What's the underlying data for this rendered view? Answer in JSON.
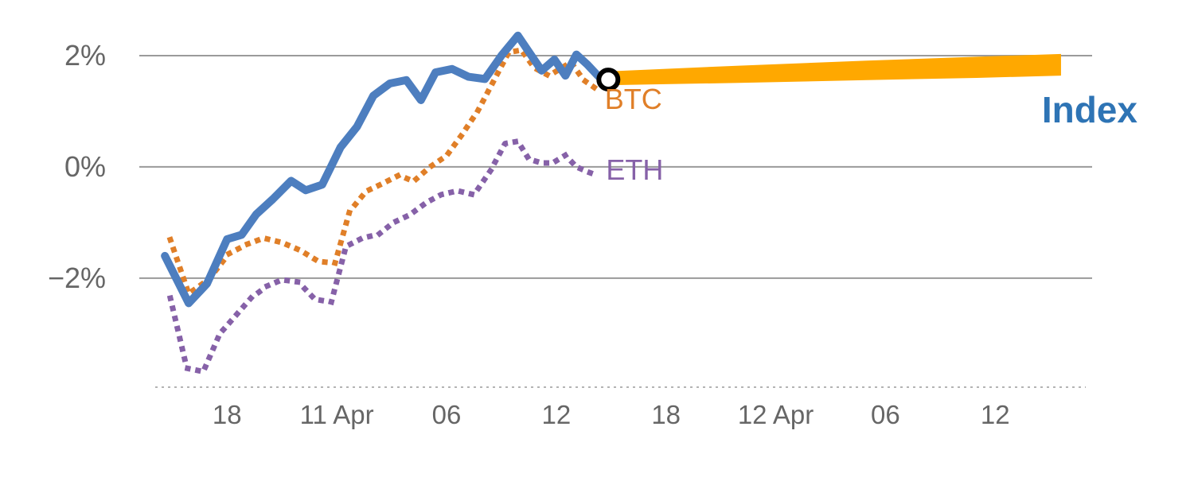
{
  "chart_data": {
    "type": "line",
    "title": "",
    "xlabel": "",
    "ylabel": "",
    "x_axis_note": "datetime axis, 6-hour ticks spanning 10 Apr to 12 Apr, hours since 10 Apr 00:00",
    "xlim": [
      13.2,
      65.3
    ],
    "ylim": [
      -3.96,
      2.7
    ],
    "grid": "horizontal",
    "legend_position": "inline-labels",
    "style": {
      "grid_color": "#9a9a9a",
      "axis_color": "#b3b3b3",
      "tick_color": "#666666"
    },
    "y_ticks": [
      {
        "v": 2,
        "label": "2%"
      },
      {
        "v": 0,
        "label": "0%"
      },
      {
        "v": -2,
        "label": "−2%"
      }
    ],
    "x_ticks": [
      {
        "t": 18,
        "label": "18"
      },
      {
        "t": 24,
        "label": "11 Apr"
      },
      {
        "t": 30,
        "label": "06"
      },
      {
        "t": 36,
        "label": "12"
      },
      {
        "t": 42,
        "label": "18"
      },
      {
        "t": 48,
        "label": "12 Apr"
      },
      {
        "t": 54,
        "label": "06"
      },
      {
        "t": 60,
        "label": "12"
      }
    ],
    "series": [
      {
        "id": "eth",
        "name": "ETH",
        "color": "#8661a8",
        "dash": "dotted",
        "width": 7,
        "points": [
          [
            14.9,
            -2.36
          ],
          [
            15.8,
            -3.62
          ],
          [
            16.7,
            -3.68
          ],
          [
            17.6,
            -3.0
          ],
          [
            18.4,
            -2.7
          ],
          [
            19.3,
            -2.36
          ],
          [
            20.2,
            -2.14
          ],
          [
            21.0,
            -2.03
          ],
          [
            21.9,
            -2.07
          ],
          [
            22.8,
            -2.38
          ],
          [
            23.7,
            -2.43
          ],
          [
            24.5,
            -1.43
          ],
          [
            25.4,
            -1.28
          ],
          [
            26.3,
            -1.21
          ],
          [
            27.1,
            -1.0
          ],
          [
            28.0,
            -0.86
          ],
          [
            28.9,
            -0.64
          ],
          [
            29.7,
            -0.5
          ],
          [
            30.6,
            -0.43
          ],
          [
            31.5,
            -0.5
          ],
          [
            32.4,
            -0.07
          ],
          [
            33.2,
            0.42
          ],
          [
            33.9,
            0.46
          ],
          [
            34.5,
            0.14
          ],
          [
            35.2,
            0.07
          ],
          [
            35.8,
            0.07
          ],
          [
            36.5,
            0.21
          ],
          [
            37.1,
            0.0
          ],
          [
            37.8,
            -0.1
          ],
          [
            38.3,
            -0.16
          ]
        ]
      },
      {
        "id": "btc",
        "name": "BTC",
        "color": "#e07f28",
        "dash": "dotted",
        "width": 7,
        "points": [
          [
            14.9,
            -1.31
          ],
          [
            15.9,
            -2.28
          ],
          [
            17.0,
            -2.02
          ],
          [
            18.1,
            -1.56
          ],
          [
            19.1,
            -1.39
          ],
          [
            20.0,
            -1.28
          ],
          [
            21.0,
            -1.36
          ],
          [
            22.0,
            -1.5
          ],
          [
            23.0,
            -1.7
          ],
          [
            23.9,
            -1.73
          ],
          [
            24.7,
            -0.8
          ],
          [
            25.6,
            -0.44
          ],
          [
            26.5,
            -0.3
          ],
          [
            27.4,
            -0.15
          ],
          [
            28.2,
            -0.26
          ],
          [
            29.1,
            0.0
          ],
          [
            30.0,
            0.2
          ],
          [
            30.8,
            0.56
          ],
          [
            31.7,
            1.0
          ],
          [
            32.6,
            1.56
          ],
          [
            33.4,
            2.06
          ],
          [
            34.1,
            2.1
          ],
          [
            34.8,
            1.78
          ],
          [
            35.6,
            1.64
          ],
          [
            36.3,
            1.78
          ],
          [
            36.8,
            1.88
          ],
          [
            37.5,
            1.56
          ],
          [
            38.2,
            1.4
          ]
        ]
      },
      {
        "id": "index",
        "name": "Index",
        "color": "#4d7ebf",
        "dash": "solid",
        "width": 10,
        "points": [
          [
            14.6,
            -1.6
          ],
          [
            15.9,
            -2.45
          ],
          [
            16.9,
            -2.1
          ],
          [
            18.0,
            -1.3
          ],
          [
            18.8,
            -1.22
          ],
          [
            19.6,
            -0.85
          ],
          [
            20.5,
            -0.58
          ],
          [
            21.5,
            -0.25
          ],
          [
            22.3,
            -0.42
          ],
          [
            23.2,
            -0.32
          ],
          [
            24.2,
            0.35
          ],
          [
            25.1,
            0.72
          ],
          [
            26.0,
            1.28
          ],
          [
            26.9,
            1.5
          ],
          [
            27.8,
            1.56
          ],
          [
            28.6,
            1.2
          ],
          [
            29.4,
            1.7
          ],
          [
            30.3,
            1.76
          ],
          [
            31.2,
            1.62
          ],
          [
            32.1,
            1.58
          ],
          [
            33.0,
            2.0
          ],
          [
            33.9,
            2.36
          ],
          [
            34.6,
            2.02
          ],
          [
            35.2,
            1.73
          ],
          [
            35.9,
            1.93
          ],
          [
            36.5,
            1.64
          ],
          [
            37.1,
            2.02
          ],
          [
            37.7,
            1.84
          ],
          [
            38.3,
            1.63
          ],
          [
            38.85,
            1.57
          ]
        ]
      },
      {
        "id": "index-forecast",
        "name": "Index forecast band",
        "kind": "band",
        "color": "#ffa800",
        "top": [
          [
            39.0,
            1.72
          ],
          [
            46.0,
            1.82
          ],
          [
            53.0,
            1.91
          ],
          [
            59.0,
            1.98
          ],
          [
            63.6,
            2.03
          ]
        ],
        "bottom": [
          [
            39.0,
            1.47
          ],
          [
            46.0,
            1.51
          ],
          [
            53.0,
            1.56
          ],
          [
            59.0,
            1.6
          ],
          [
            63.6,
            1.64
          ]
        ]
      }
    ],
    "marker": {
      "t": 38.85,
      "v": 1.57,
      "r": 12,
      "fill": "#ffffff",
      "stroke": "#000000",
      "stroke_width": 6
    },
    "labels": [
      {
        "id": "btc",
        "text": "BTC",
        "t": 38.65,
        "v": 1.22,
        "color": "#e07f28",
        "size": 36,
        "weight": 400
      },
      {
        "id": "eth",
        "text": "ETH",
        "t": 38.72,
        "v": -0.05,
        "color": "#8661a8",
        "size": 36,
        "weight": 400
      },
      {
        "id": "index",
        "text": "Index",
        "t": 62.55,
        "v": 1.03,
        "color": "#2e74b5",
        "size": 46,
        "weight": 700
      }
    ]
  }
}
